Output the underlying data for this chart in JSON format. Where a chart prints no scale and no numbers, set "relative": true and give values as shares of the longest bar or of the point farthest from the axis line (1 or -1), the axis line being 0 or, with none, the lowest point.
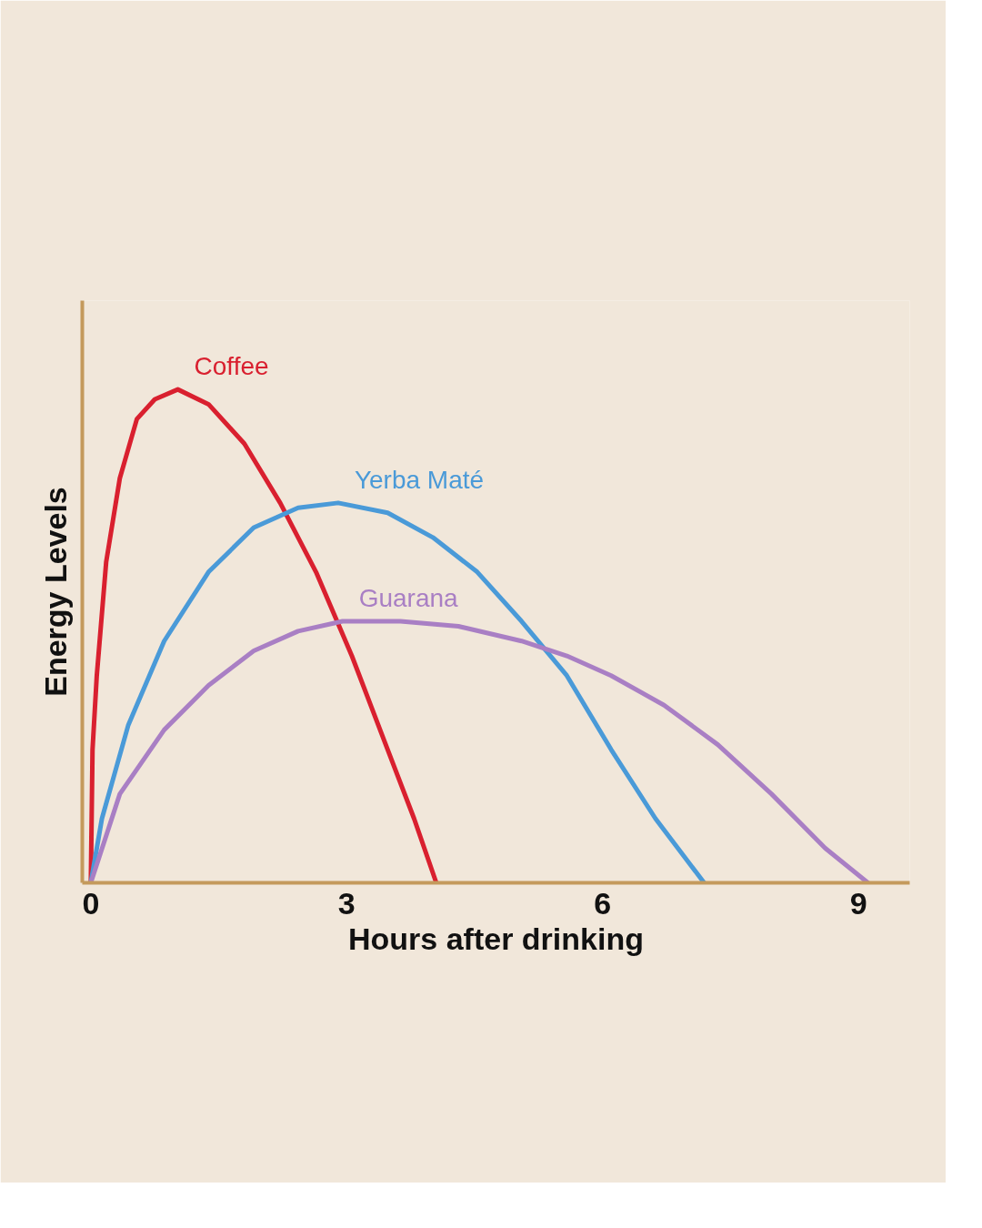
{
  "chart_data": {
    "type": "line",
    "relative": true,
    "xlabel": "Hours after drinking",
    "ylabel": "Energy Levels",
    "xlim": [
      -0.1,
      9.6
    ],
    "xticks": [
      0,
      3,
      6,
      9
    ],
    "grid": false,
    "marker": "none",
    "line_style": "solid",
    "series": [
      {
        "name": "Coffee",
        "color": "#d9202f",
        "x": [
          0,
          0.02,
          0.07,
          0.18,
          0.34,
          0.54,
          0.75,
          1.02,
          1.38,
          1.8,
          2.22,
          2.64,
          3.06,
          3.48,
          3.79,
          4.05
        ],
        "values": [
          0,
          0.27,
          0.42,
          0.65,
          0.82,
          0.94,
          0.98,
          1,
          0.97,
          0.89,
          0.77,
          0.63,
          0.46,
          0.27,
          0.13,
          0
        ]
      },
      {
        "name": "Yerba Maté",
        "color": "#4a9ad8",
        "x": [
          0,
          0.13,
          0.44,
          0.86,
          1.38,
          1.91,
          2.43,
          2.9,
          3.48,
          4.01,
          4.53,
          5.05,
          5.58,
          6.1,
          6.62,
          7.19
        ],
        "values": [
          0,
          0.13,
          0.32,
          0.49,
          0.63,
          0.72,
          0.76,
          0.77,
          0.75,
          0.7,
          0.63,
          0.53,
          0.42,
          0.27,
          0.13,
          0
        ]
      },
      {
        "name": "Guarana",
        "color": "#a97fc4",
        "x": [
          0,
          0.34,
          0.86,
          1.38,
          1.91,
          2.43,
          2.95,
          3.63,
          4.31,
          5.05,
          5.58,
          6.1,
          6.72,
          7.35,
          7.98,
          8.61,
          9.11
        ],
        "values": [
          0,
          0.18,
          0.31,
          0.4,
          0.47,
          0.51,
          0.53,
          0.53,
          0.52,
          0.49,
          0.46,
          0.42,
          0.36,
          0.28,
          0.18,
          0.07,
          0
        ]
      }
    ]
  }
}
